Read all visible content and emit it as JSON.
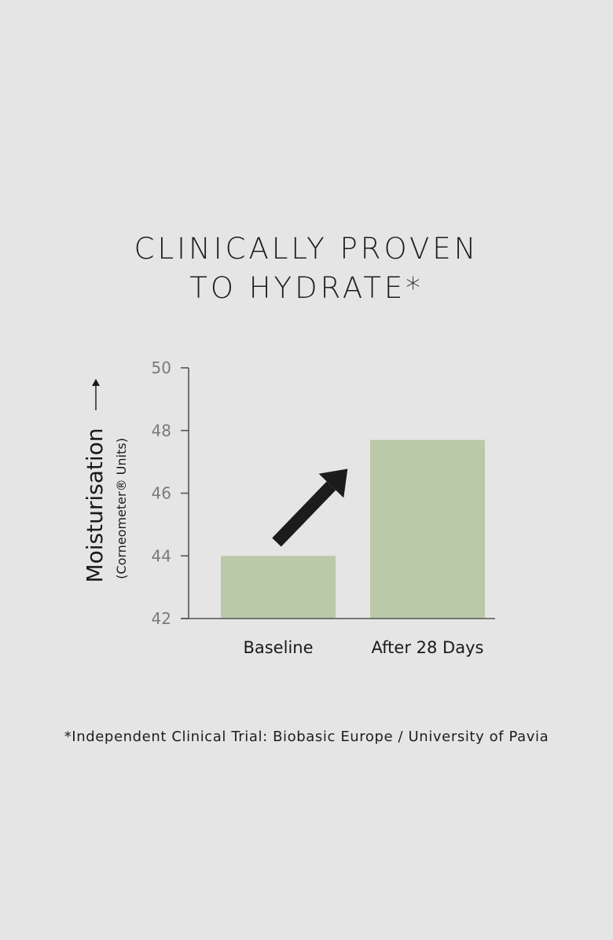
{
  "title_lines": [
    "CLINICALLY PROVEN",
    "TO HYDRATE*"
  ],
  "footnote": "*Independent Clinical Trial: Biobasic Europe / University of Pavia",
  "colors": {
    "background": "#e5e5e5",
    "bar": "#bac9a8",
    "axis": "#555555",
    "arrow": "#1c1c1c",
    "text": "#1a1a1a",
    "tick_text": "#7a7a7a"
  },
  "chart_data": {
    "type": "bar",
    "title": "CLINICALLY PROVEN TO HYDRATE*",
    "categories": [
      "Baseline",
      "After 28 Days"
    ],
    "values": [
      44,
      47.7
    ],
    "ylabel": "Moisturisation",
    "ylabel_sub": "(Corneometer® Units)",
    "ylim": [
      42,
      50
    ],
    "yticks": [
      42,
      44,
      46,
      48,
      50
    ],
    "grid": false,
    "legend": "none",
    "annotation": "upward-arrow"
  }
}
